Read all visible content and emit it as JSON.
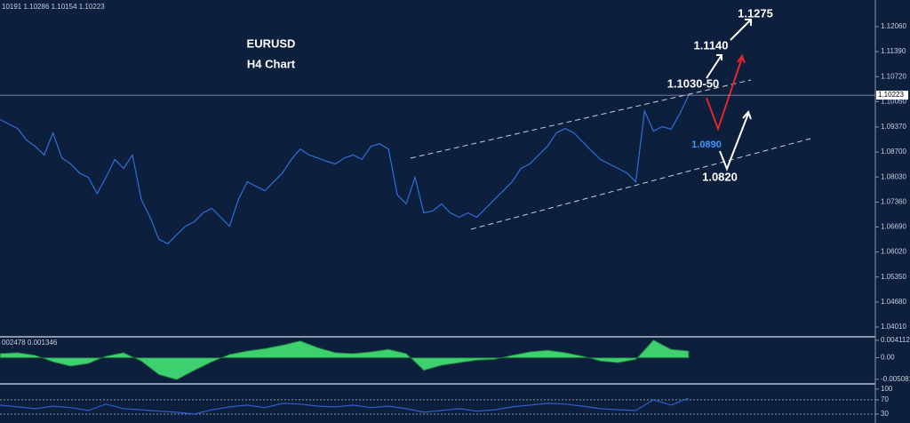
{
  "header": "10191 1.10286 1.10154 1.10223",
  "chart_data": [
    {
      "type": "line",
      "color": "#2f6fd6",
      "last_price": 1.10223,
      "ylim": [
        1.03772,
        1.12773
      ],
      "yticks": [
        {
          "value": 1.1206,
          "label": "1.12060"
        },
        {
          "value": 1.1139,
          "label": "1.11390"
        },
        {
          "value": 1.1072,
          "label": "1.10720"
        },
        {
          "value": 1.1005,
          "label": "1.10050"
        },
        {
          "value": 1.0937,
          "label": "1.09370"
        },
        {
          "value": 1.087,
          "label": "1.08700"
        },
        {
          "value": 1.0803,
          "label": "1.08030"
        },
        {
          "value": 1.0736,
          "label": "1.07360"
        },
        {
          "value": 1.0669,
          "label": "1.06690"
        },
        {
          "value": 1.0602,
          "label": "1.06020"
        },
        {
          "value": 1.0535,
          "label": "1.05350"
        },
        {
          "value": 1.0468,
          "label": "1.04680"
        },
        {
          "value": 1.0401,
          "label": "1.04010"
        }
      ],
      "values": [
        1.0957,
        1.0945,
        1.0933,
        1.0902,
        1.0885,
        1.0862,
        1.0921,
        1.0854,
        1.0838,
        1.0814,
        1.0802,
        1.0759,
        1.0802,
        1.085,
        1.0826,
        1.0862,
        1.0743,
        1.0695,
        1.0636,
        1.0624,
        1.0648,
        1.0671,
        1.0683,
        1.0707,
        1.0719,
        1.0695,
        1.0671,
        1.0743,
        1.079,
        1.0778,
        1.0766,
        1.079,
        1.0814,
        1.085,
        1.0878,
        1.0862,
        1.0854,
        1.0845,
        1.0838,
        1.0854,
        1.0862,
        1.085,
        1.0885,
        1.0892,
        1.0878,
        1.0755,
        1.0731,
        1.0802,
        1.0707,
        1.0712,
        1.0731,
        1.0707,
        1.0695,
        1.0707,
        1.0695,
        1.0719,
        1.0743,
        1.0766,
        1.079,
        1.0826,
        1.0838,
        1.0862,
        1.0885,
        1.0921,
        1.0933,
        1.0921,
        1.0897,
        1.0873,
        1.085,
        1.0838,
        1.0826,
        1.0814,
        1.079,
        1.098,
        1.0926,
        1.0938,
        1.0931,
        1.0973,
        1.10223
      ],
      "annotations": [
        "EURUSD",
        "H4 Chart",
        "1.1275",
        "1.1140",
        "1.1030-50",
        "1.0890",
        "1.0820"
      ]
    },
    {
      "type": "area",
      "color": "#3ecf6e",
      "label": "002478 0.001346",
      "ylim": [
        -0.00596,
        0.00473
      ],
      "yticks": [
        0.004112,
        {
          "value": 0,
          "label": "0.00"
        },
        -0.005081
      ],
      "values": [
        0.001,
        0.0012,
        0.0006,
        -0.001,
        -0.002,
        -0.0014,
        0.0004,
        0.0012,
        -0.0008,
        -0.004,
        -0.0052,
        -0.003,
        -0.001,
        0.0008,
        0.0016,
        0.0022,
        0.003,
        0.004,
        0.0024,
        0.0012,
        0.001,
        0.0014,
        0.002,
        0.001,
        -0.003,
        -0.0018,
        -0.0012,
        -0.0006,
        -0.0004,
        0.0006,
        0.0014,
        0.0018,
        0.0012,
        0.0004,
        -0.0008,
        -0.0012,
        -0.0004,
        0.0042,
        0.002,
        0.0016
      ]
    },
    {
      "type": "line",
      "color": "#2f5fd0",
      "levels": [
        70,
        30
      ],
      "ylim": [
        5,
        112
      ],
      "yticks": [
        100,
        70,
        30
      ],
      "values": [
        55,
        50,
        45,
        52,
        48,
        40,
        58,
        45,
        42,
        38,
        35,
        30,
        42,
        50,
        55,
        48,
        60,
        58,
        52,
        50,
        55,
        48,
        52,
        45,
        35,
        40,
        45,
        38,
        42,
        50,
        55,
        60,
        58,
        52,
        45,
        42,
        40,
        70,
        55,
        75
      ]
    }
  ]
}
